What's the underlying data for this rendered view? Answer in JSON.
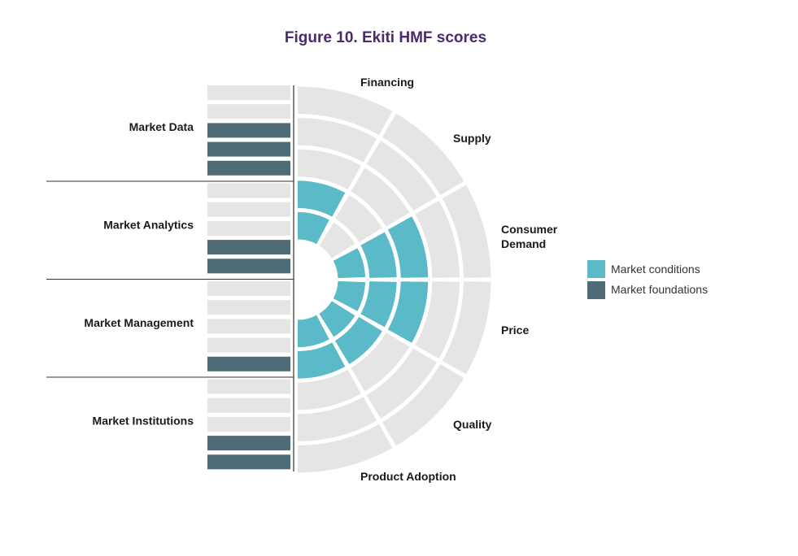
{
  "chart_data": {
    "type": "radial-bar",
    "title": "Figure 10. Ekiti HMF scores",
    "max_score": 5,
    "market_conditions": {
      "series_name": "Market conditions",
      "categories": [
        "Financing",
        "Supply",
        "Consumer Demand",
        "Price",
        "Quality",
        "Product Adoption"
      ],
      "values": [
        2,
        0,
        3,
        3,
        2,
        2
      ]
    },
    "market_foundations": {
      "series_name": "Market foundations",
      "categories": [
        "Market Data",
        "Market Analytics",
        "Market Management",
        "Market Institutions"
      ],
      "values": [
        3,
        2,
        1,
        2
      ]
    },
    "legend": {
      "position": "right",
      "items": [
        {
          "label": "Market conditions",
          "color": "#5BBAC8"
        },
        {
          "label": "Market foundations",
          "color": "#4F6B78"
        }
      ]
    },
    "colors": {
      "title": "#4B2A6B",
      "empty": "#E5E5E5",
      "market_conditions": "#5BBAC8",
      "market_foundations": "#4F6B78",
      "divider": "#333333"
    }
  }
}
